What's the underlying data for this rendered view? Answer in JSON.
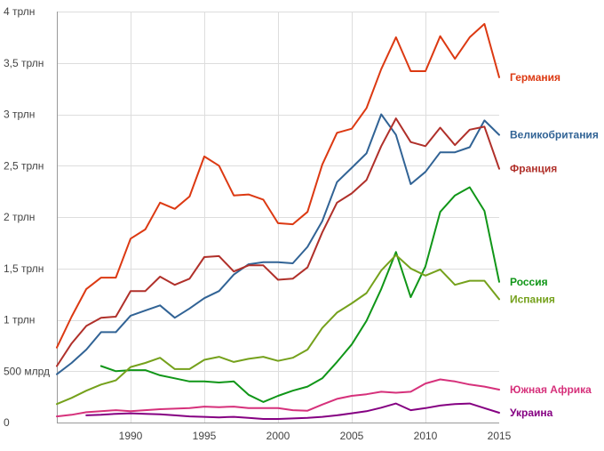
{
  "chart_data": {
    "type": "line",
    "title": "",
    "xlabel": "",
    "ylabel": "",
    "xlim": [
      1985,
      2015
    ],
    "ylim": [
      0,
      4000
    ],
    "grid": true,
    "legend_position": "right-end-of-lines",
    "x_ticks": [
      1990,
      1995,
      2000,
      2005,
      2010,
      2015
    ],
    "y_ticks": [
      0,
      500,
      1000,
      1500,
      2000,
      2500,
      3000,
      3500,
      4000
    ],
    "y_tick_labels": [
      "0",
      "500 млрд",
      "1 трлн",
      "1,5 трлн",
      "2 трлн",
      "2,5 трлн",
      "3 трлн",
      "3,5 трлн",
      "4 трлн"
    ],
    "series": [
      {
        "name": "Германия",
        "color": "#dc3912",
        "x_start": 1985,
        "values": [
          730,
          1030,
          1300,
          1410,
          1410,
          1790,
          1880,
          2140,
          2080,
          2200,
          2590,
          2500,
          2210,
          2220,
          2170,
          1940,
          1930,
          2050,
          2510,
          2820,
          2860,
          3060,
          3440,
          3750,
          3420,
          3420,
          3760,
          3540,
          3750,
          3880,
          3360
        ]
      },
      {
        "name": "Великобритания",
        "color": "#316395",
        "x_start": 1985,
        "values": [
          470,
          580,
          710,
          880,
          880,
          1040,
          1090,
          1140,
          1020,
          1110,
          1210,
          1280,
          1440,
          1540,
          1560,
          1560,
          1550,
          1710,
          1960,
          2340,
          2480,
          2620,
          3000,
          2800,
          2320,
          2440,
          2630,
          2630,
          2680,
          2940,
          2800
        ]
      },
      {
        "name": "Франция",
        "color": "#b0302a",
        "x_start": 1985,
        "values": [
          550,
          770,
          940,
          1020,
          1030,
          1280,
          1280,
          1420,
          1340,
          1400,
          1610,
          1620,
          1470,
          1530,
          1530,
          1390,
          1400,
          1510,
          1850,
          2140,
          2230,
          2360,
          2690,
          2960,
          2730,
          2690,
          2870,
          2700,
          2850,
          2880,
          2470
        ]
      },
      {
        "name": "Россия",
        "color": "#109618",
        "x_start": 1988,
        "values": [
          550,
          500,
          510,
          510,
          460,
          430,
          400,
          400,
          390,
          400,
          270,
          200,
          260,
          310,
          350,
          430,
          590,
          760,
          990,
          1300,
          1660,
          1220,
          1520,
          2050,
          2210,
          2290,
          2060,
          1370
        ]
      },
      {
        "name": "Испания",
        "color": "#75a11c",
        "x_start": 1985,
        "values": [
          180,
          240,
          310,
          370,
          410,
          540,
          580,
          630,
          520,
          520,
          610,
          640,
          590,
          620,
          640,
          600,
          630,
          710,
          920,
          1070,
          1160,
          1260,
          1480,
          1630,
          1500,
          1430,
          1490,
          1340,
          1380,
          1380,
          1200
        ]
      },
      {
        "name": "Южная Африка",
        "color": "#d6317b",
        "x_start": 1985,
        "values": [
          60,
          75,
          100,
          110,
          120,
          110,
          120,
          130,
          135,
          140,
          155,
          150,
          155,
          140,
          140,
          140,
          120,
          115,
          175,
          230,
          260,
          275,
          300,
          290,
          300,
          380,
          420,
          400,
          370,
          350,
          320
        ]
      },
      {
        "name": "Украина",
        "color": "#850082",
        "x_start": 1987,
        "values": [
          70,
          75,
          85,
          90,
          85,
          80,
          70,
          60,
          55,
          50,
          55,
          45,
          35,
          35,
          40,
          45,
          55,
          70,
          90,
          110,
          145,
          185,
          120,
          140,
          165,
          180,
          185,
          140,
          95
        ]
      }
    ]
  }
}
